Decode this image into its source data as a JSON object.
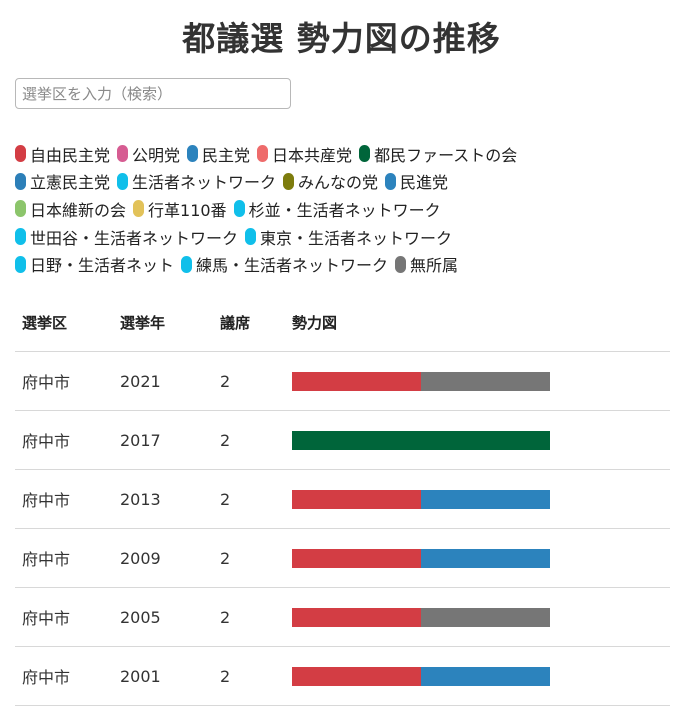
{
  "header": {
    "title": "都議選 勢力図の推移"
  },
  "search": {
    "placeholder": "選挙区を入力（検索）",
    "value": ""
  },
  "parties": {
    "jimin": {
      "label": "自由民主党",
      "color": "#d33d44"
    },
    "komei": {
      "label": "公明党",
      "color": "#d65c92"
    },
    "minshu": {
      "label": "民主党",
      "color": "#2c83bd"
    },
    "kyosan": {
      "label": "日本共産党",
      "color": "#ee6b6b"
    },
    "tomin": {
      "label": "都民ファーストの会",
      "color": "#00653a"
    },
    "rikken": {
      "label": "立憲民主党",
      "color": "#2c7fb8"
    },
    "seikatsu": {
      "label": "生活者ネットワーク",
      "color": "#10bfea"
    },
    "minna": {
      "label": "みんなの党",
      "color": "#7d7c0d"
    },
    "minshin": {
      "label": "民進党",
      "color": "#2c83bd"
    },
    "ishin": {
      "label": "日本維新の会",
      "color": "#8cc56b"
    },
    "kakumei": {
      "label": "行革110番",
      "color": "#e2c259"
    },
    "suginami": {
      "label": "杉並・生活者ネットワーク",
      "color": "#10bfea"
    },
    "setagaya": {
      "label": "世田谷・生活者ネットワーク",
      "color": "#10bfea"
    },
    "tokyo": {
      "label": "東京・生活者ネットワーク",
      "color": "#10bfea"
    },
    "hino": {
      "label": "日野・生活者ネット",
      "color": "#10bfea"
    },
    "nerima": {
      "label": "練馬・生活者ネットワーク",
      "color": "#10bfea"
    },
    "mushozoku": {
      "label": "無所属",
      "color": "#767676"
    }
  },
  "legend_rows": [
    [
      "jimin",
      "komei",
      "minshu",
      "kyosan",
      "tomin"
    ],
    [
      "rikken",
      "seikatsu",
      "minna",
      "minshin"
    ],
    [
      "ishin",
      "kakumei",
      "suginami"
    ],
    [
      "setagaya",
      "tokyo"
    ],
    [
      "hino",
      "nerima",
      "mushozoku"
    ]
  ],
  "table": {
    "headers": [
      "選挙区",
      "選挙年",
      "議席",
      "勢力図"
    ],
    "rows": [
      {
        "district": "府中市",
        "year": "2021",
        "seats": "2",
        "composition": [
          "jimin",
          "mushozoku"
        ]
      },
      {
        "district": "府中市",
        "year": "2017",
        "seats": "2",
        "composition": [
          "tomin",
          "tomin"
        ]
      },
      {
        "district": "府中市",
        "year": "2013",
        "seats": "2",
        "composition": [
          "jimin",
          "minshu"
        ]
      },
      {
        "district": "府中市",
        "year": "2009",
        "seats": "2",
        "composition": [
          "jimin",
          "minshu"
        ]
      },
      {
        "district": "府中市",
        "year": "2005",
        "seats": "2",
        "composition": [
          "jimin",
          "mushozoku"
        ]
      },
      {
        "district": "府中市",
        "year": "2001",
        "seats": "2",
        "composition": [
          "jimin",
          "minshu"
        ]
      }
    ]
  }
}
